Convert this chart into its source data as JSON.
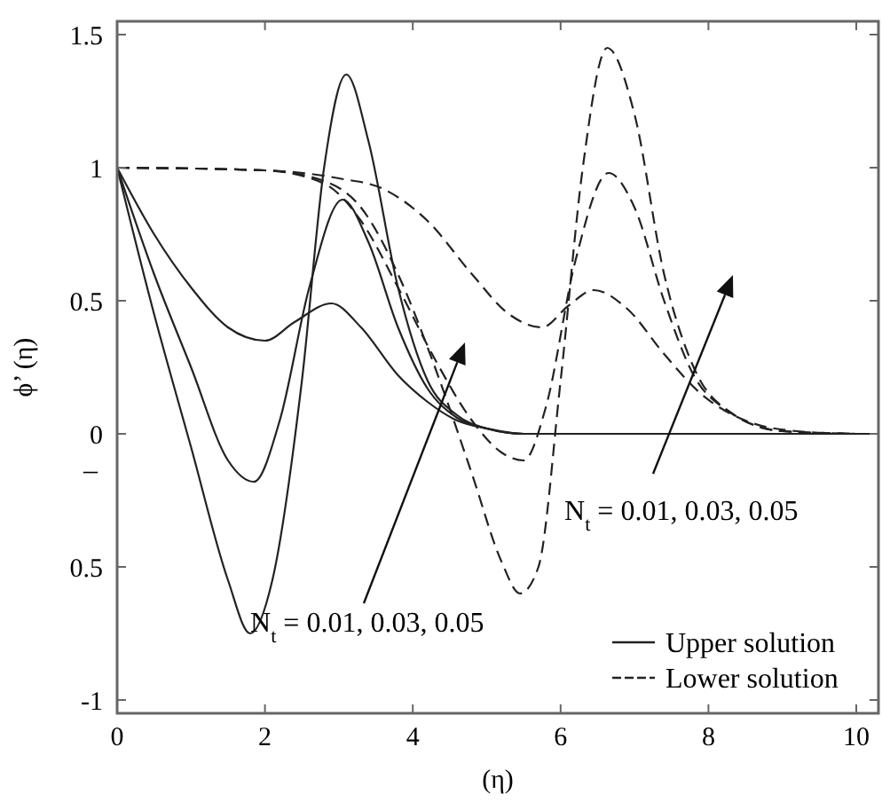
{
  "chart_data": {
    "type": "line",
    "xlabel": "(η)",
    "ylabel": "ϕ’ (η)",
    "xlim": [
      0,
      10.3
    ],
    "ylim": [
      -1.05,
      1.55
    ],
    "xticks": [
      0,
      2,
      4,
      6,
      8,
      10
    ],
    "yticks": [
      1.5,
      1,
      0.5,
      0,
      {
        "value": -0.5,
        "label": "0.5"
      },
      -1
    ],
    "legend": "bottom right",
    "grid": false,
    "annotations": [
      "N$_{t}$ = 0.01, 0.03, 0.05",
      "N$_{t}$ = 0.01, 0.03, 0.05",
      "–"
    ],
    "series": [
      {
        "name": "Upper solution",
        "color": "#222222",
        "line_style": "solid",
        "x": [
          0,
          0.5,
          1,
          1.5,
          1.8,
          2.1,
          2.5,
          2.8,
          3.1,
          3.4,
          3.8,
          4.2,
          4.6,
          5,
          5.5,
          10.3
        ],
        "values": [
          1,
          0.45,
          -0.05,
          -0.55,
          -0.75,
          -0.55,
          0.2,
          1.0,
          1.35,
          1.1,
          0.55,
          0.2,
          0.07,
          0.02,
          0,
          0
        ]
      },
      {
        "color": "#222222",
        "line_style": "solid",
        "x": [
          0,
          0.5,
          1,
          1.5,
          1.85,
          2.2,
          2.6,
          3.05,
          3.4,
          3.8,
          4.2,
          4.6,
          5,
          5.5,
          10.3
        ],
        "values": [
          1,
          0.6,
          0.25,
          -0.1,
          -0.18,
          0.05,
          0.55,
          0.88,
          0.72,
          0.4,
          0.17,
          0.06,
          0.02,
          0,
          0
        ]
      },
      {
        "color": "#222222",
        "line_style": "solid",
        "x": [
          0,
          0.5,
          1,
          1.5,
          2,
          2.4,
          2.9,
          3.3,
          3.8,
          4.2,
          4.6,
          5,
          5.5,
          10.3
        ],
        "values": [
          1,
          0.75,
          0.55,
          0.4,
          0.35,
          0.42,
          0.49,
          0.4,
          0.22,
          0.12,
          0.05,
          0.02,
          0,
          0
        ]
      },
      {
        "name": "Lower solution",
        "color": "#222222",
        "line_style": "dashed",
        "x": [
          0,
          2,
          2.8,
          3.3,
          3.8,
          4.3,
          4.8,
          5.2,
          5.45,
          5.7,
          6,
          6.3,
          6.63,
          7,
          7.4,
          7.8,
          8.3,
          9,
          10
        ],
        "values": [
          1,
          0.99,
          0.95,
          0.85,
          0.6,
          0.25,
          -0.15,
          -0.48,
          -0.6,
          -0.5,
          0.2,
          1.0,
          1.45,
          1.2,
          0.6,
          0.25,
          0.08,
          0.01,
          0
        ]
      },
      {
        "color": "#222222",
        "line_style": "dashed",
        "x": [
          0,
          2,
          2.8,
          3.3,
          3.8,
          4.3,
          4.8,
          5.2,
          5.5,
          5.8,
          6.2,
          6.65,
          7,
          7.4,
          7.8,
          8.3,
          9,
          10
        ],
        "values": [
          1,
          0.99,
          0.94,
          0.8,
          0.55,
          0.28,
          0.05,
          -0.07,
          -0.1,
          0.1,
          0.65,
          0.98,
          0.85,
          0.5,
          0.22,
          0.08,
          0.01,
          0
        ]
      },
      {
        "color": "#222222",
        "line_style": "dashed",
        "x": [
          0,
          2,
          3,
          3.6,
          4.2,
          4.8,
          5.3,
          5.75,
          6.1,
          6.45,
          6.9,
          7.4,
          7.9,
          8.5,
          9.2,
          10
        ],
        "values": [
          1,
          0.99,
          0.96,
          0.92,
          0.8,
          0.6,
          0.45,
          0.4,
          0.48,
          0.54,
          0.47,
          0.3,
          0.15,
          0.05,
          0.01,
          0
        ]
      }
    ]
  }
}
